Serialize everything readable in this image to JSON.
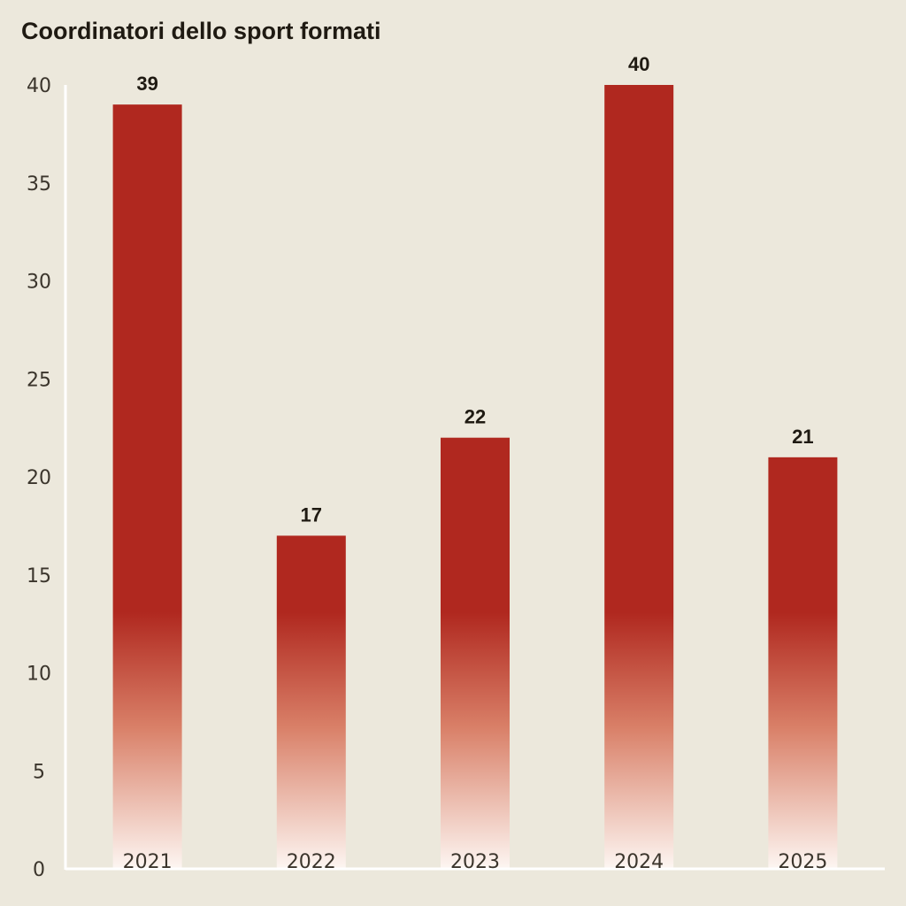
{
  "chart_data": {
    "type": "bar",
    "title": "Coordinatori dello sport formati",
    "categories": [
      "2021",
      "2022",
      "2023",
      "2024",
      "2025"
    ],
    "values": [
      39,
      17,
      22,
      40,
      21
    ],
    "ylim": [
      0,
      40
    ],
    "yticks": [
      0,
      5,
      10,
      15,
      20,
      25,
      30,
      35,
      40
    ],
    "xlabel": "",
    "ylabel": "",
    "grid": false,
    "data_labels": true,
    "bar_color": "#b0281f",
    "bar_fade_color": "#fdf6f2",
    "background_color": "#ece8dc",
    "axis_color": "#ffffff"
  }
}
